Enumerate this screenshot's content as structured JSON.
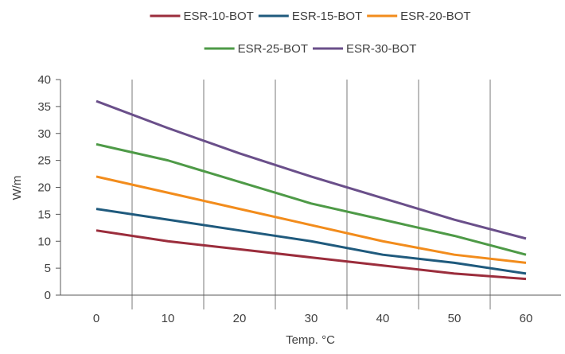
{
  "chart_data": {
    "type": "line",
    "title": "",
    "xlabel": "Temp. °C",
    "ylabel": "W/m",
    "x": [
      0,
      10,
      20,
      30,
      40,
      50,
      60
    ],
    "x_tick_labels": [
      "0",
      "10",
      "20",
      "30",
      "40",
      "50",
      "60"
    ],
    "y_tick_labels": [
      "0",
      "5",
      "10",
      "15",
      "20",
      "25",
      "30",
      "35",
      "40"
    ],
    "ylim": [
      0,
      40
    ],
    "y_ticks": [
      0,
      5,
      10,
      15,
      20,
      25,
      30,
      35,
      40
    ],
    "grid": {
      "vertical": true,
      "horizontal": false
    },
    "legend_position": "top",
    "series": [
      {
        "name": "ESR-10-BOT",
        "color": "#9b2d3c",
        "values": [
          12,
          10,
          8.5,
          7,
          5.5,
          4,
          3
        ]
      },
      {
        "name": "ESR-15-BOT",
        "color": "#1f5a7d",
        "values": [
          16,
          14,
          12,
          10,
          7.5,
          6,
          4
        ]
      },
      {
        "name": "ESR-20-BOT",
        "color": "#f28c1c",
        "values": [
          22,
          19,
          16,
          13,
          10,
          7.5,
          6
        ]
      },
      {
        "name": "ESR-25-BOT",
        "color": "#4e9a47",
        "values": [
          28,
          25,
          21,
          17,
          14,
          11,
          7.5
        ]
      },
      {
        "name": "ESR-30-BOT",
        "color": "#6a4f8a",
        "values": [
          36,
          31,
          26.3,
          22,
          18,
          14,
          10.5
        ]
      }
    ]
  },
  "colors": {
    "axis": "#595959",
    "grid": "#595959",
    "text": "#404040"
  }
}
